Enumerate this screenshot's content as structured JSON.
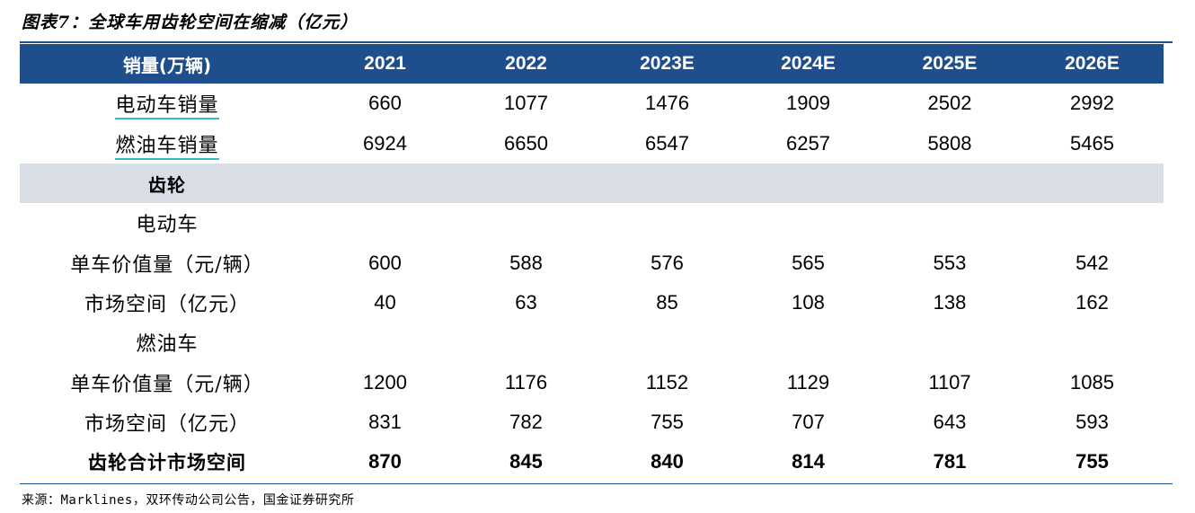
{
  "title": "图表7：全球车用齿轮空间在缩减（亿元）",
  "header": [
    "销量(万辆)",
    "2021",
    "2022",
    "2023E",
    "2024E",
    "2025E",
    "2026E"
  ],
  "rows": [
    {
      "label": "电动车销量",
      "values": [
        "660",
        "1077",
        "1476",
        "1909",
        "2502",
        "2992"
      ]
    },
    {
      "label": "燃油车销量",
      "values": [
        "6924",
        "6650",
        "6547",
        "6257",
        "5808",
        "5465"
      ]
    },
    {
      "label": "齿轮",
      "values": [
        "",
        "",
        "",
        "",
        "",
        ""
      ]
    },
    {
      "label": "电动车",
      "values": [
        "",
        "",
        "",
        "",
        "",
        ""
      ]
    },
    {
      "label": "单车价值量（元/辆）",
      "values": [
        "600",
        "588",
        "576",
        "565",
        "553",
        "542"
      ]
    },
    {
      "label": "市场空间（亿元）",
      "values": [
        "40",
        "63",
        "85",
        "108",
        "138",
        "162"
      ]
    },
    {
      "label": "燃油车",
      "values": [
        "",
        "",
        "",
        "",
        "",
        ""
      ]
    },
    {
      "label": "单车价值量（元/辆）",
      "values": [
        "1200",
        "1176",
        "1152",
        "1129",
        "1107",
        "1085"
      ]
    },
    {
      "label": "市场空间（亿元）",
      "values": [
        "831",
        "782",
        "755",
        "707",
        "643",
        "593"
      ]
    },
    {
      "label": "齿轮合计市场空间",
      "values": [
        "870",
        "845",
        "840",
        "814",
        "781",
        "755"
      ]
    }
  ],
  "source": "来源：Marklines，双环传动公司公告，国金证券研究所",
  "colors": {
    "header_bg": "#1f4e8c",
    "section_bg": "#d9dde6",
    "accent": "#3cb6c8"
  }
}
